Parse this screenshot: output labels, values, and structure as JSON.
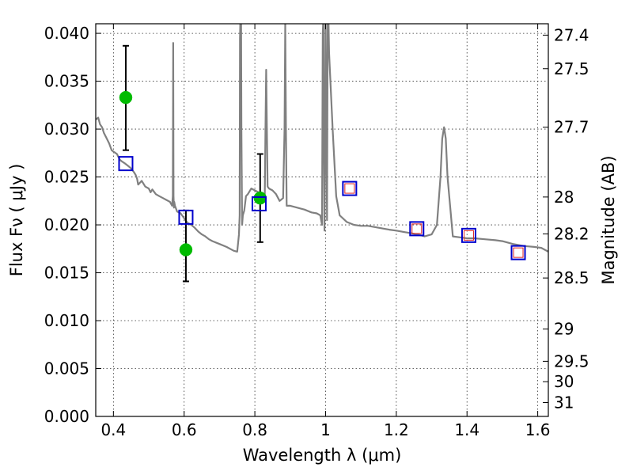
{
  "chart_data": {
    "type": "scatter",
    "title": "",
    "xlabel": "Wavelength  λ (μm)",
    "ylabel": "Flux  Fν  ( μJy )",
    "y2label": "Magnitude (AB)",
    "xlim": [
      0.35,
      1.63
    ],
    "ylim": [
      0.0,
      0.041
    ],
    "grid": true,
    "x_ticks": [
      0.4,
      0.6,
      0.8,
      1.0,
      1.2,
      1.4,
      1.6
    ],
    "x_tick_labels": [
      "0.4",
      "0.6",
      "0.8",
      "1",
      "1.2",
      "1.4",
      "1.6"
    ],
    "y_ticks": [
      0.0,
      0.005,
      0.01,
      0.015,
      0.02,
      0.025,
      0.03,
      0.035,
      0.04
    ],
    "y_tick_labels": [
      "0.000",
      "0.005",
      "0.010",
      "0.015",
      "0.020",
      "0.025",
      "0.030",
      "0.035",
      "0.040"
    ],
    "y2_ticks": [
      27.4,
      27.5,
      27.7,
      28,
      28.2,
      28.5,
      29,
      29.5,
      30,
      31
    ],
    "y2_tick_labels": [
      "27.4",
      "27.5",
      "27.7",
      "28",
      "28.2",
      "28.5",
      "29",
      "29.5",
      "30",
      "31"
    ],
    "colors": {
      "spectrum": "#808080",
      "observed": "#00bb00",
      "model_open": "#0000cc",
      "model_inner": "#dd2222",
      "errorbar": "#000000"
    },
    "series": [
      {
        "kind": "line",
        "x": [
          0.35,
          0.357,
          0.362,
          0.368,
          0.373,
          0.38,
          0.388,
          0.395,
          0.402,
          0.41,
          0.418,
          0.425,
          0.433,
          0.44,
          0.447,
          0.452,
          0.458,
          0.463,
          0.467,
          0.47,
          0.48,
          0.49,
          0.5,
          0.505,
          0.51,
          0.52,
          0.53,
          0.54,
          0.55,
          0.56,
          0.566,
          0.568,
          0.569,
          0.57,
          0.571,
          0.572,
          0.574,
          0.58,
          0.59,
          0.6,
          0.61,
          0.62,
          0.63,
          0.64,
          0.65,
          0.66,
          0.67,
          0.68,
          0.7,
          0.72,
          0.74,
          0.75,
          0.755,
          0.757,
          0.758,
          0.759,
          0.76,
          0.761,
          0.762,
          0.764,
          0.766,
          0.77,
          0.775,
          0.78,
          0.79,
          0.8,
          0.81,
          0.82,
          0.828,
          0.83,
          0.832,
          0.834,
          0.836,
          0.838,
          0.84,
          0.85,
          0.86,
          0.87,
          0.88,
          0.884,
          0.886,
          0.888,
          0.89,
          0.9,
          0.92,
          0.94,
          0.96,
          0.975,
          0.985,
          0.99,
          0.992,
          0.994,
          0.995,
          0.997,
          0.999,
          1.0,
          1.002,
          1.004,
          1.006,
          1.008,
          1.01,
          1.02,
          1.03,
          1.04,
          1.06,
          1.08,
          1.1,
          1.12,
          1.15,
          1.18,
          1.2,
          1.23,
          1.26,
          1.28,
          1.3,
          1.315,
          1.325,
          1.33,
          1.335,
          1.34,
          1.345,
          1.36,
          1.38,
          1.4,
          1.42,
          1.45,
          1.48,
          1.5,
          1.53,
          1.56,
          1.59,
          1.61,
          1.63
        ],
        "y": [
          0.031,
          0.0312,
          0.0305,
          0.0302,
          0.0296,
          0.0291,
          0.0285,
          0.0278,
          0.0276,
          0.0274,
          0.0268,
          0.0266,
          0.0264,
          0.0262,
          0.026,
          0.0258,
          0.0255,
          0.0252,
          0.0248,
          0.0242,
          0.0246,
          0.024,
          0.0238,
          0.0234,
          0.0237,
          0.0232,
          0.023,
          0.0228,
          0.0226,
          0.0224,
          0.022,
          0.023,
          0.039,
          0.023,
          0.0218,
          0.0224,
          0.022,
          0.0214,
          0.0212,
          0.0207,
          0.0202,
          0.02,
          0.0197,
          0.0193,
          0.019,
          0.0188,
          0.0185,
          0.0183,
          0.018,
          0.0177,
          0.0173,
          0.0172,
          0.019,
          0.021,
          0.0395,
          0.0415,
          0.042,
          0.0415,
          0.03,
          0.02,
          0.021,
          0.0215,
          0.023,
          0.0232,
          0.0238,
          0.0236,
          0.0234,
          0.0232,
          0.0228,
          0.03,
          0.0362,
          0.03,
          0.024,
          0.0239,
          0.0238,
          0.0236,
          0.0232,
          0.0225,
          0.0228,
          0.03,
          0.041,
          0.03,
          0.022,
          0.022,
          0.0218,
          0.0216,
          0.0213,
          0.0212,
          0.021,
          0.02,
          0.04,
          0.042,
          0.03,
          0.0194,
          0.03,
          0.042,
          0.03,
          0.0205,
          0.042,
          0.042,
          0.038,
          0.03,
          0.023,
          0.021,
          0.0203,
          0.02,
          0.0199,
          0.0199,
          0.0197,
          0.0195,
          0.0194,
          0.0192,
          0.019,
          0.0188,
          0.019,
          0.02,
          0.025,
          0.029,
          0.0302,
          0.029,
          0.025,
          0.0188,
          0.0187,
          0.0186,
          0.0186,
          0.0185,
          0.0184,
          0.0183,
          0.018,
          0.0178,
          0.0177,
          0.0176,
          0.0172
        ]
      },
      {
        "kind": "points-with-errorbars",
        "x": [
          0.435,
          0.605,
          0.815
        ],
        "y": [
          0.0333,
          0.0174,
          0.0228
        ],
        "err_low": [
          0.0278,
          0.0141,
          0.0182
        ],
        "err_high": [
          0.0387,
          0.0215,
          0.0274
        ]
      },
      {
        "kind": "open-squares",
        "x": [
          0.435,
          0.605,
          0.812,
          1.068,
          1.258,
          1.405,
          1.545
        ],
        "y": [
          0.0264,
          0.0208,
          0.0222,
          0.0238,
          0.0196,
          0.0189,
          0.0171
        ]
      },
      {
        "kind": "inner-squares",
        "x": [
          1.068,
          1.258,
          1.405,
          1.545
        ],
        "y": [
          0.0238,
          0.0196,
          0.0189,
          0.0171
        ]
      }
    ]
  }
}
